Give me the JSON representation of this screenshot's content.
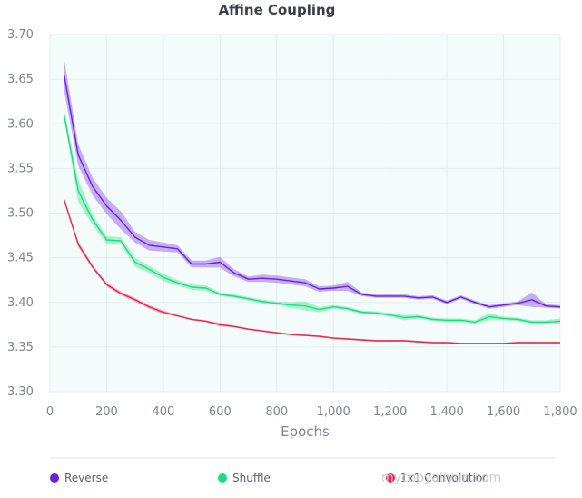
{
  "chart_data": {
    "type": "line",
    "title": "Affine Coupling",
    "xlabel": "Epochs",
    "ylabel": "",
    "xlim": [
      0,
      1800
    ],
    "ylim": [
      3.3,
      3.7
    ],
    "x_ticks": [
      0,
      200,
      400,
      600,
      800,
      1000,
      1200,
      1400,
      1600,
      1800
    ],
    "x_tick_labels": [
      "0",
      "200",
      "400",
      "600",
      "800",
      "1,000",
      "1,200",
      "1,400",
      "1,600",
      "1,800"
    ],
    "y_ticks": [
      3.3,
      3.35,
      3.4,
      3.45,
      3.5,
      3.55,
      3.6,
      3.65,
      3.7
    ],
    "y_tick_labels": [
      "3.30",
      "3.35",
      "3.40",
      "3.45",
      "3.50",
      "3.55",
      "3.60",
      "3.65",
      "3.70"
    ],
    "grid": true,
    "legend_position": "bottom",
    "x": [
      50,
      100,
      150,
      200,
      250,
      300,
      350,
      400,
      450,
      500,
      550,
      600,
      650,
      700,
      750,
      800,
      850,
      900,
      950,
      1000,
      1050,
      1100,
      1150,
      1200,
      1250,
      1300,
      1350,
      1400,
      1450,
      1500,
      1550,
      1600,
      1650,
      1700,
      1750,
      1800
    ],
    "series": [
      {
        "name": "Reverse",
        "color": "#6c1fe0",
        "values": [
          3.655,
          3.565,
          3.53,
          3.508,
          3.492,
          3.473,
          3.464,
          3.462,
          3.46,
          3.443,
          3.443,
          3.445,
          3.433,
          3.426,
          3.427,
          3.426,
          3.424,
          3.422,
          3.415,
          3.416,
          3.418,
          3.409,
          3.407,
          3.407,
          3.407,
          3.405,
          3.406,
          3.4,
          3.406,
          3.4,
          3.395,
          3.397,
          3.399,
          3.403,
          3.396,
          3.395
        ],
        "band": [
          0.018,
          0.012,
          0.01,
          0.009,
          0.01,
          0.006,
          0.006,
          0.005,
          0.004,
          0.004,
          0.004,
          0.006,
          0.004,
          0.003,
          0.004,
          0.004,
          0.004,
          0.004,
          0.003,
          0.003,
          0.005,
          0.002,
          0.002,
          0.002,
          0.002,
          0.002,
          0.002,
          0.002,
          0.002,
          0.002,
          0.002,
          0.002,
          0.002,
          0.008,
          0.002,
          0.002
        ]
      },
      {
        "name": "Shuffle",
        "color": "#18e07a",
        "values": [
          3.61,
          3.525,
          3.493,
          3.47,
          3.469,
          3.445,
          3.437,
          3.428,
          3.422,
          3.417,
          3.416,
          3.409,
          3.407,
          3.404,
          3.401,
          3.399,
          3.397,
          3.396,
          3.392,
          3.395,
          3.393,
          3.389,
          3.388,
          3.386,
          3.383,
          3.384,
          3.381,
          3.38,
          3.38,
          3.378,
          3.384,
          3.382,
          3.381,
          3.378,
          3.378,
          3.379
        ],
        "band": [
          0.005,
          0.012,
          0.006,
          0.004,
          0.004,
          0.005,
          0.004,
          0.004,
          0.003,
          0.003,
          0.003,
          0.002,
          0.002,
          0.002,
          0.002,
          0.002,
          0.003,
          0.005,
          0.003,
          0.002,
          0.002,
          0.002,
          0.002,
          0.002,
          0.003,
          0.002,
          0.002,
          0.002,
          0.002,
          0.002,
          0.004,
          0.002,
          0.002,
          0.002,
          0.002,
          0.003
        ]
      },
      {
        "name": "1x1 Convolution",
        "color": "#f0244a",
        "values": [
          3.515,
          3.465,
          3.44,
          3.42,
          3.41,
          3.403,
          3.395,
          3.389,
          3.385,
          3.381,
          3.379,
          3.375,
          3.373,
          3.37,
          3.368,
          3.366,
          3.364,
          3.363,
          3.362,
          3.36,
          3.359,
          3.358,
          3.357,
          3.357,
          3.357,
          3.356,
          3.355,
          3.355,
          3.354,
          3.354,
          3.354,
          3.354,
          3.355,
          3.355,
          3.355,
          3.355
        ],
        "band": [
          0.002,
          0.003,
          0.002,
          0.002,
          0.002,
          0.002,
          0.002,
          0.002,
          0.001,
          0.001,
          0.001,
          0.002,
          0.001,
          0.001,
          0.001,
          0.001,
          0.001,
          0.001,
          0.001,
          0.001,
          0.001,
          0.001,
          0.001,
          0.001,
          0.001,
          0.001,
          0.001,
          0.001,
          0.001,
          0.001,
          0.001,
          0.001,
          0.001,
          0.001,
          0.001,
          0.001
        ]
      }
    ]
  },
  "style": {
    "plot_background": "#f4fbfb",
    "grid_color": "#e4ecef",
    "band_opacity": 0.35
  },
  "watermark": "mycopyaliyun.com"
}
